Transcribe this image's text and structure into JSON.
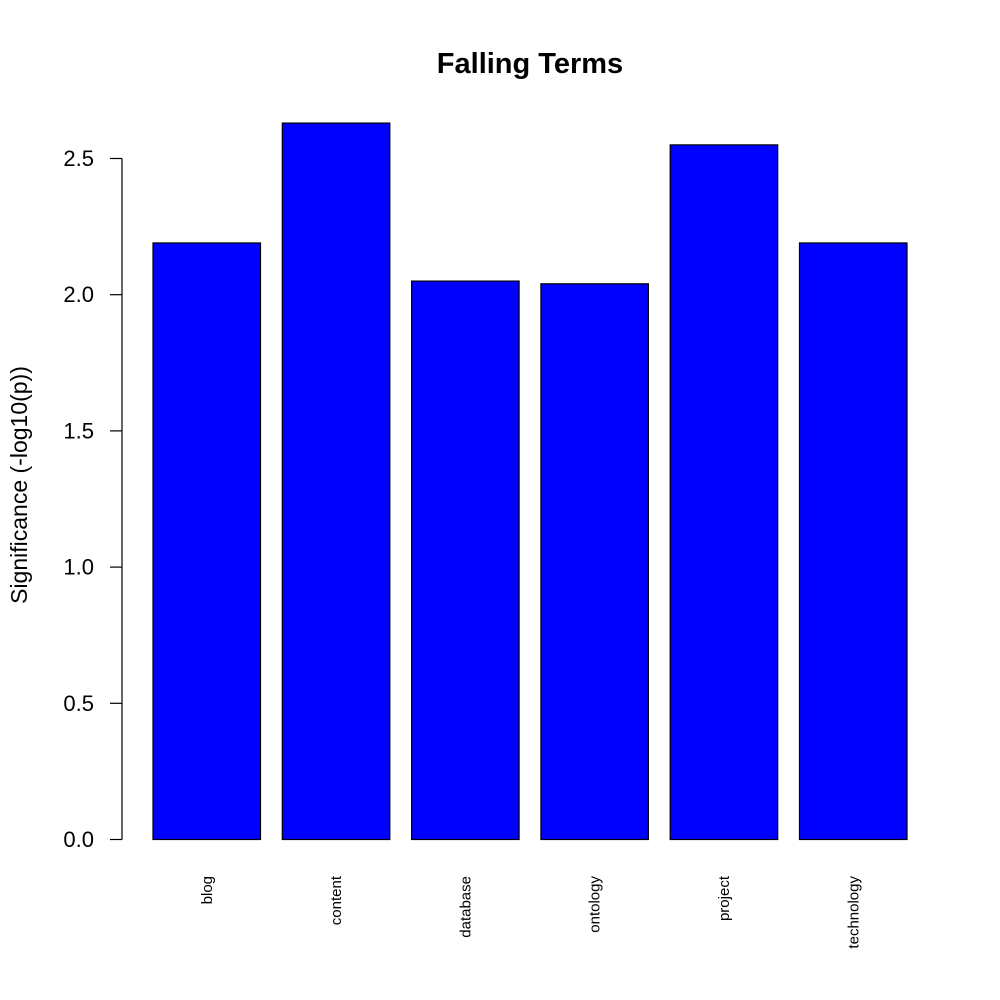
{
  "chart_data": {
    "type": "bar",
    "title": "Falling Terms",
    "xlabel": "",
    "ylabel": "Significance (-log10(p))",
    "categories": [
      "blog",
      "content",
      "database",
      "ontology",
      "project",
      "technology"
    ],
    "values": [
      2.19,
      2.63,
      2.05,
      2.04,
      2.55,
      2.19
    ],
    "ylim": [
      0,
      2.5
    ],
    "yticks": [
      0.0,
      0.5,
      1.0,
      1.5,
      2.0,
      2.5
    ],
    "ytick_labels": [
      "0.0",
      "0.5",
      "1.0",
      "1.5",
      "2.0",
      "2.5"
    ],
    "grid": false,
    "legend": "none",
    "bar_color": "#0000ff",
    "edge_color": "#000000"
  }
}
